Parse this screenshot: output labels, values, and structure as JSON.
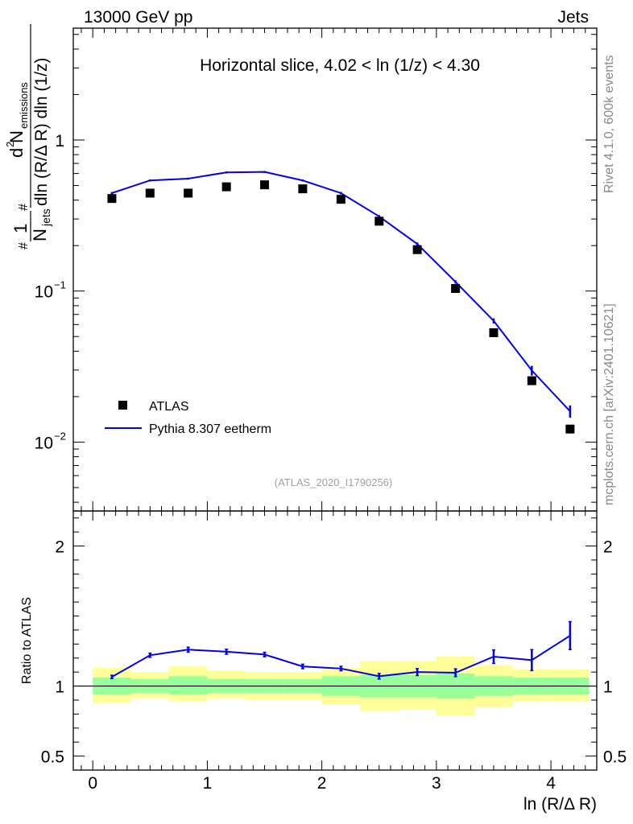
{
  "header": {
    "left": "13000 GeV pp",
    "right": "Jets"
  },
  "side_labels": {
    "rivet": "Rivet 4.1.0,  600k events",
    "mcplots": "mcplots.cern.ch [arXiv:2401.10621]"
  },
  "chart_data": [
    {
      "type": "scatter",
      "panel": "main",
      "title": "Horizontal slice, 4.02 < ln (1/z) < 4.30",
      "watermark": "(ATLAS_2020_I1790256)",
      "xlabel": "ln (R/Δ R)",
      "ylabel_prefix": "1",
      "ylabel_njets": "N",
      "ylabel_njets_sub": "jets",
      "ylabel_numer": "d",
      "ylabel_numer_sup": "2",
      "ylabel_numer_N": "N",
      "ylabel_numer_sub": "emissions",
      "ylabel_denom": "dln (R/Δ R) dln (1/z)",
      "yscale": "log",
      "xlim": [
        -0.17,
        4.4
      ],
      "ylim": [
        0.0035,
        5.5
      ],
      "yticks": [
        {
          "value": 1,
          "label": "1"
        },
        {
          "value": 0.1,
          "label": "10",
          "exp": "−1"
        },
        {
          "value": 0.01,
          "label": "10",
          "exp": "−2"
        }
      ],
      "x": [
        0.167,
        0.5,
        0.833,
        1.167,
        1.5,
        1.833,
        2.167,
        2.5,
        2.833,
        3.167,
        3.5,
        3.833,
        4.167
      ],
      "series": [
        {
          "name": "ATLAS",
          "style": "markers",
          "color": "#000000",
          "values": [
            0.41,
            0.445,
            0.445,
            0.49,
            0.505,
            0.475,
            0.405,
            0.29,
            0.188,
            0.104,
            0.053,
            0.0255,
            0.0122
          ]
        },
        {
          "name": "Pythia 8.307 eetherm",
          "style": "line",
          "color": "#0000ee",
          "values": [
            0.445,
            0.54,
            0.555,
            0.61,
            0.615,
            0.54,
            0.445,
            0.312,
            0.205,
            0.115,
            0.0635,
            0.0298,
            0.016
          ],
          "errors": [
            0.008,
            0.008,
            0.008,
            0.009,
            0.009,
            0.008,
            0.008,
            0.006,
            0.005,
            0.003,
            0.0025,
            0.0022,
            0.0015
          ]
        }
      ],
      "legend": "bottom-left"
    },
    {
      "type": "line",
      "panel": "ratio",
      "ylabel": "Ratio to ATLAS",
      "xlabel": "ln (R/Δ R)",
      "xlim": [
        -0.17,
        4.4
      ],
      "ylim": [
        0.4,
        2.25
      ],
      "xticks": [
        0,
        1,
        2,
        3,
        4
      ],
      "yticks": [
        0.5,
        1,
        2
      ],
      "reference": 1,
      "bins": [
        {
          "lo": 0.0,
          "hi": 0.333,
          "inner": [
            0.94,
            1.06
          ],
          "outer": [
            0.88,
            1.13
          ]
        },
        {
          "lo": 0.333,
          "hi": 0.667,
          "inner": [
            0.95,
            1.05
          ],
          "outer": [
            0.91,
            1.1
          ]
        },
        {
          "lo": 0.667,
          "hi": 1.0,
          "inner": [
            0.94,
            1.07
          ],
          "outer": [
            0.89,
            1.14
          ]
        },
        {
          "lo": 1.0,
          "hi": 1.333,
          "inner": [
            0.95,
            1.05
          ],
          "outer": [
            0.91,
            1.11
          ]
        },
        {
          "lo": 1.333,
          "hi": 1.667,
          "inner": [
            0.95,
            1.05
          ],
          "outer": [
            0.9,
            1.1
          ]
        },
        {
          "lo": 1.667,
          "hi": 2.0,
          "inner": [
            0.95,
            1.05
          ],
          "outer": [
            0.9,
            1.1
          ]
        },
        {
          "lo": 2.0,
          "hi": 2.333,
          "inner": [
            0.93,
            1.07
          ],
          "outer": [
            0.87,
            1.13
          ]
        },
        {
          "lo": 2.333,
          "hi": 2.667,
          "inner": [
            0.92,
            1.08
          ],
          "outer": [
            0.82,
            1.18
          ]
        },
        {
          "lo": 2.667,
          "hi": 3.0,
          "inner": [
            0.92,
            1.08
          ],
          "outer": [
            0.83,
            1.18
          ]
        },
        {
          "lo": 3.0,
          "hi": 3.333,
          "inner": [
            0.91,
            1.09
          ],
          "outer": [
            0.79,
            1.21
          ]
        },
        {
          "lo": 3.333,
          "hi": 3.667,
          "inner": [
            0.93,
            1.07
          ],
          "outer": [
            0.85,
            1.15
          ]
        },
        {
          "lo": 3.667,
          "hi": 4.0,
          "inner": [
            0.94,
            1.06
          ],
          "outer": [
            0.89,
            1.12
          ]
        },
        {
          "lo": 4.0,
          "hi": 4.333,
          "inner": [
            0.94,
            1.06
          ],
          "outer": [
            0.89,
            1.12
          ]
        }
      ],
      "series": [
        {
          "name": "Pythia 8.307 eetherm / ATLAS",
          "color": "#0000ee",
          "x": [
            0.167,
            0.5,
            0.833,
            1.167,
            1.5,
            1.833,
            2.167,
            2.5,
            2.833,
            3.167,
            3.5,
            3.833,
            4.167
          ],
          "values": [
            1.065,
            1.22,
            1.26,
            1.245,
            1.225,
            1.14,
            1.125,
            1.07,
            1.1,
            1.095,
            1.21,
            1.185,
            1.36
          ],
          "errors": [
            0.012,
            0.015,
            0.018,
            0.018,
            0.016,
            0.016,
            0.016,
            0.02,
            0.025,
            0.028,
            0.048,
            0.075,
            0.1
          ]
        }
      ]
    }
  ]
}
